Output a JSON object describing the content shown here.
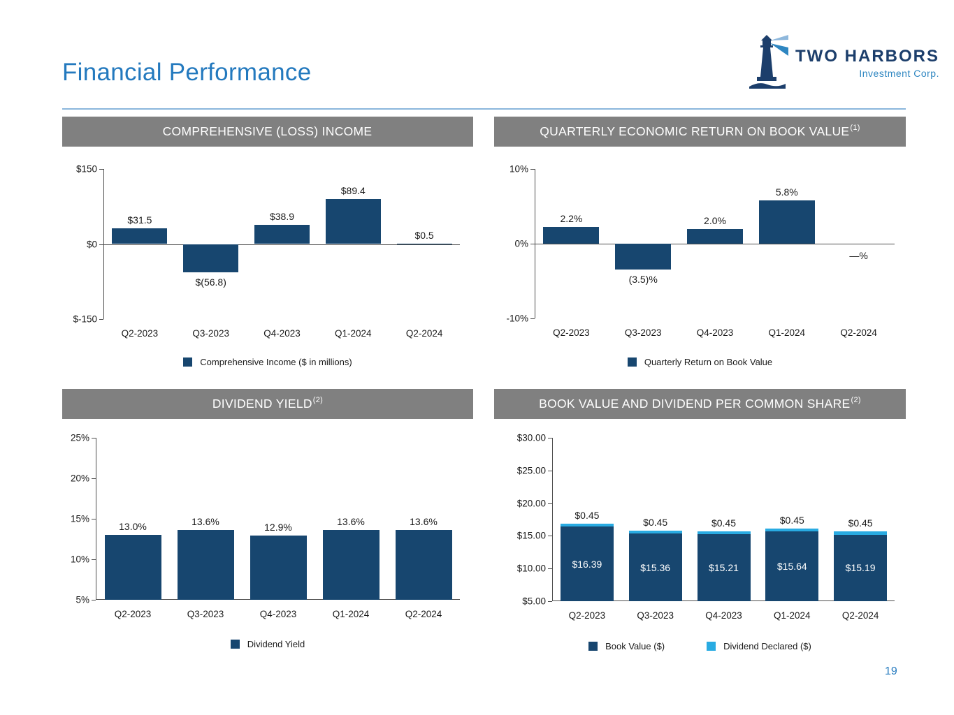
{
  "page": {
    "title": "Financial Performance",
    "page_number": "19"
  },
  "logo": {
    "name": "TWO HARBORS",
    "subtitle": "Investment Corp."
  },
  "colors": {
    "navy": "#17466F",
    "light_blue": "#29ABE2",
    "header_gray": "#808080",
    "accent_blue": "#2379BE"
  },
  "chart_data": [
    {
      "type": "bar",
      "title": "COMPREHENSIVE (LOSS) INCOME",
      "title_sup": "",
      "categories": [
        "Q2-2023",
        "Q3-2023",
        "Q4-2023",
        "Q1-2024",
        "Q2-2024"
      ],
      "series": [
        {
          "name": "Comprehensive Income ($ in millions)",
          "color": "#17466F",
          "values": [
            31.5,
            -56.8,
            38.9,
            89.4,
            0.5
          ],
          "labels": [
            "$31.5",
            "$(56.8)",
            "$38.9",
            "$89.4",
            "$0.5"
          ]
        }
      ],
      "ylim": [
        -150,
        150
      ],
      "baseline": 0,
      "yticks": [
        {
          "value": 150,
          "label": "$150"
        },
        {
          "value": 0,
          "label": "$0"
        },
        {
          "value": -150,
          "label": "$-150"
        }
      ],
      "legend": [
        {
          "label": "Comprehensive Income ($ in millions)",
          "color": "#17466F"
        }
      ]
    },
    {
      "type": "bar",
      "title": "QUARTERLY ECONOMIC RETURN ON BOOK VALUE",
      "title_sup": "(1)",
      "categories": [
        "Q2-2023",
        "Q3-2023",
        "Q4-2023",
        "Q1-2024",
        "Q2-2024"
      ],
      "series": [
        {
          "name": "Quarterly Return on Book Value",
          "color": "#17466F",
          "values": [
            2.2,
            -3.5,
            2.0,
            5.8,
            null
          ],
          "labels": [
            "2.2%",
            "(3.5)%",
            "2.0%",
            "5.8%",
            "—%"
          ]
        }
      ],
      "ylim": [
        -10,
        10
      ],
      "baseline": 0,
      "yticks": [
        {
          "value": 10,
          "label": "10%"
        },
        {
          "value": 0,
          "label": "0%"
        },
        {
          "value": -10,
          "label": "-10%"
        }
      ],
      "legend": [
        {
          "label": "Quarterly Return on Book Value",
          "color": "#17466F"
        }
      ]
    },
    {
      "type": "bar",
      "title": "DIVIDEND YIELD",
      "title_sup": "(2)",
      "categories": [
        "Q2-2023",
        "Q3-2023",
        "Q4-2023",
        "Q1-2024",
        "Q2-2024"
      ],
      "series": [
        {
          "name": "Dividend Yield",
          "color": "#17466F",
          "values": [
            13.0,
            13.6,
            12.9,
            13.6,
            13.6
          ],
          "labels": [
            "13.0%",
            "13.6%",
            "12.9%",
            "13.6%",
            "13.6%"
          ]
        }
      ],
      "ylim": [
        5,
        25
      ],
      "baseline": 5,
      "yticks": [
        {
          "value": 25,
          "label": "25%"
        },
        {
          "value": 20,
          "label": "20%"
        },
        {
          "value": 15,
          "label": "15%"
        },
        {
          "value": 10,
          "label": "10%"
        },
        {
          "value": 5,
          "label": "5%"
        }
      ],
      "legend": [
        {
          "label": "Dividend Yield",
          "color": "#17466F"
        }
      ]
    },
    {
      "type": "stacked-bar",
      "title": "BOOK VALUE AND DIVIDEND PER COMMON SHARE",
      "title_sup": "(2)",
      "categories": [
        "Q2-2023",
        "Q3-2023",
        "Q4-2023",
        "Q1-2024",
        "Q2-2024"
      ],
      "series": [
        {
          "name": "Book Value ($)",
          "color": "#17466F",
          "label_position": "inside",
          "values": [
            16.39,
            15.36,
            15.21,
            15.64,
            15.19
          ],
          "labels": [
            "$16.39",
            "$15.36",
            "$15.21",
            "$15.64",
            "$15.19"
          ]
        },
        {
          "name": "Dividend Declared ($)",
          "color": "#29ABE2",
          "label_position": "above",
          "values": [
            0.45,
            0.45,
            0.45,
            0.45,
            0.45
          ],
          "labels": [
            "$0.45",
            "$0.45",
            "$0.45",
            "$0.45",
            "$0.45"
          ]
        }
      ],
      "ylim": [
        5,
        30
      ],
      "baseline": 5,
      "yticks": [
        {
          "value": 30,
          "label": "$30.00"
        },
        {
          "value": 25,
          "label": "$25.00"
        },
        {
          "value": 20,
          "label": "$20.00"
        },
        {
          "value": 15,
          "label": "$15.00"
        },
        {
          "value": 10,
          "label": "$10.00"
        },
        {
          "value": 5,
          "label": "$5.00"
        }
      ],
      "legend": [
        {
          "label": "Book Value ($)",
          "color": "#17466F"
        },
        {
          "label": "Dividend Declared ($)",
          "color": "#29ABE2"
        }
      ]
    }
  ]
}
